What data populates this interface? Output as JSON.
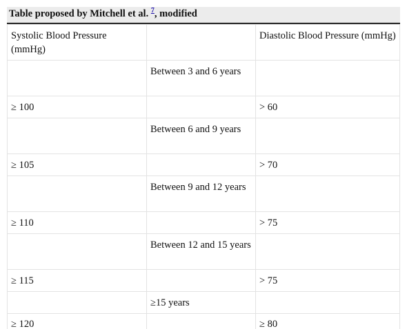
{
  "caption": {
    "text_before": "Table proposed by Mitchell et al. ",
    "ref": "7",
    "text_after": ", modified"
  },
  "header": {
    "col1": "Systolic Blood Pressure (mmHg)",
    "col2": "",
    "col3": "Diastolic Blood Pressure (mmHg)"
  },
  "rows": [
    {
      "systolic": "",
      "age": "Between 3 and 6 years",
      "diastolic": ""
    },
    {
      "systolic": "≥ 100",
      "age": "",
      "diastolic": "> 60"
    },
    {
      "systolic": "",
      "age": "Between 6 and 9 years",
      "diastolic": ""
    },
    {
      "systolic": "≥ 105",
      "age": "",
      "diastolic": "> 70"
    },
    {
      "systolic": "",
      "age": "Between 9 and 12 years",
      "diastolic": ""
    },
    {
      "systolic": "≥ 110",
      "age": "",
      "diastolic": "> 75"
    },
    {
      "systolic": "",
      "age": "Between 12 and 15 years",
      "diastolic": ""
    },
    {
      "systolic": "≥ 115",
      "age": "",
      "diastolic": "> 75"
    },
    {
      "systolic": "",
      "age": "≥15 years",
      "diastolic": ""
    },
    {
      "systolic": "≥ 120",
      "age": "",
      "diastolic": "≥ 80"
    }
  ]
}
